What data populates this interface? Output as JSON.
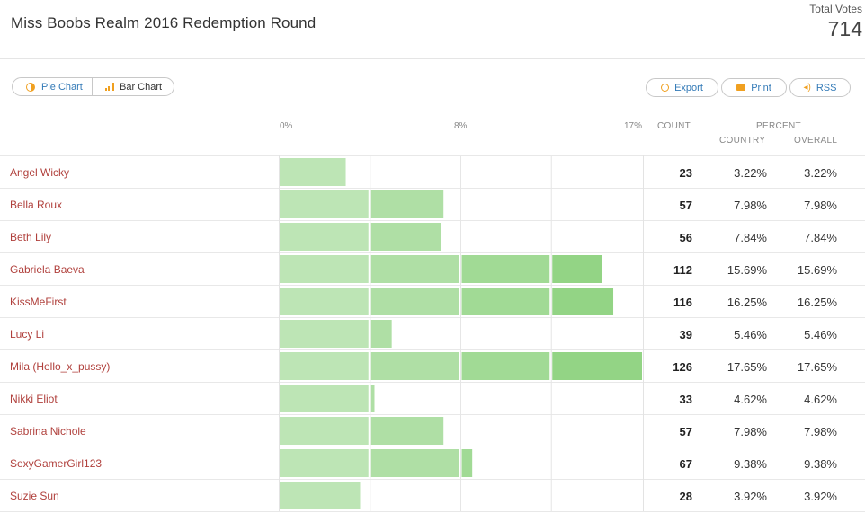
{
  "header": {
    "title": "Miss Boobs Realm 2016 Redemption Round",
    "total_label": "Total Votes",
    "total_value": "714"
  },
  "toolbar": {
    "pie_label": "Pie Chart",
    "bar_label": "Bar Chart",
    "export_label": "Export",
    "print_label": "Print",
    "rss_label": "RSS"
  },
  "columns": {
    "count": "COUNT",
    "percent": "PERCENT",
    "country": "COUNTRY",
    "overall": "OVERALL"
  },
  "colors": {
    "bar": "#bde5b5",
    "bar_dark": "#93d485",
    "name": "#b0403c",
    "accent": "#f0a020"
  },
  "chart_data": {
    "type": "bar",
    "orientation": "horizontal",
    "x_ticks": [
      "0%",
      "8%",
      "17%"
    ],
    "xlim": [
      0,
      17.65
    ],
    "categories": [
      "Angel Wicky",
      "Bella Roux",
      "Beth Lily",
      "Gabriela Baeva",
      "KissMeFirst",
      "Lucy Li",
      "Mila (Hello_x_pussy)",
      "Nikki Eliot",
      "Sabrina Nichole",
      "SexyGamerGirl123",
      "Suzie Sun"
    ],
    "counts": [
      23,
      57,
      56,
      112,
      116,
      39,
      126,
      33,
      57,
      67,
      28
    ],
    "values": [
      3.22,
      7.98,
      7.84,
      15.69,
      16.25,
      5.46,
      17.65,
      4.62,
      7.98,
      9.38,
      3.92
    ],
    "country": [
      "3.22%",
      "7.98%",
      "7.84%",
      "15.69%",
      "16.25%",
      "5.46%",
      "17.65%",
      "4.62%",
      "7.98%",
      "9.38%",
      "3.92%"
    ],
    "overall": [
      "3.22%",
      "7.98%",
      "7.84%",
      "15.69%",
      "16.25%",
      "5.46%",
      "17.65%",
      "4.62%",
      "7.98%",
      "9.38%",
      "3.92%"
    ],
    "grid": true,
    "legend": "none"
  }
}
